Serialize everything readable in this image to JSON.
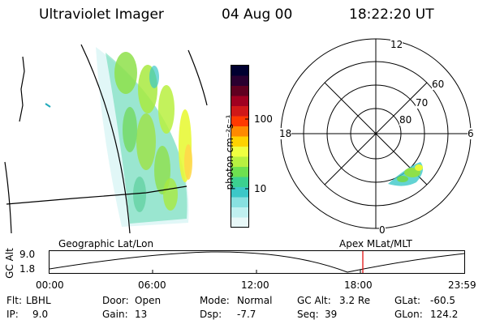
{
  "header": {
    "instrument": "Ultraviolet Imager",
    "date": "04 Aug 00",
    "time": "18:22:20 UT"
  },
  "colorbar": {
    "label": "photon cm⁻²s⁻¹",
    "ticks": [
      "100",
      "10"
    ],
    "colors": [
      "#000030",
      "#2a0030",
      "#600020",
      "#a00020",
      "#d01818",
      "#ff3a00",
      "#ff8a00",
      "#ffd200",
      "#f0ff40",
      "#b8f040",
      "#6ee050",
      "#3cd090",
      "#3cc8c8",
      "#88e0e0",
      "#c0f0f0",
      "#e8f8f8"
    ]
  },
  "polar_plot": {
    "mlt_labels": {
      "top": "12",
      "right": "6",
      "bottom": "0",
      "left": "18"
    },
    "lat_labels": [
      "60",
      "70",
      "80"
    ]
  },
  "timeline": {
    "left_title": "Geographic Lat/Lon",
    "right_title": "Apex MLat/MLT",
    "axis_label": "GC Alt",
    "y_ticks": [
      "9.0",
      "1.8"
    ],
    "x_ticks": [
      "00:00",
      "06:00",
      "12:00",
      "18:00",
      "23:59"
    ],
    "marker_color": "#e00000"
  },
  "info": {
    "filter_label": "Flt:",
    "filter_value": "LBHL",
    "ip_label": "IP:",
    "ip_value": "9.0",
    "door_label": "Door:",
    "door_value": "Open",
    "gain_label": "Gain:",
    "gain_value": "13",
    "mode_label": "Mode:",
    "mode_value": "Normal",
    "dsp_label": "Dsp:",
    "dsp_value": "-7.7",
    "gcalt_label": "GC Alt:",
    "gcalt_value": "3.2 Re",
    "seq_label": "Seq:",
    "seq_value": "39",
    "glat_label": "GLat:",
    "glat_value": "-60.5",
    "glon_label": "GLon:",
    "glon_value": "124.2"
  }
}
